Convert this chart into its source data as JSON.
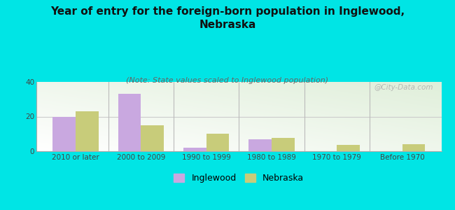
{
  "title": "Year of entry for the foreign-born population in Inglewood,\nNebraska",
  "subtitle": "(Note: State values scaled to Inglewood population)",
  "categories": [
    "2010 or later",
    "2000 to 2009",
    "1990 to 1999",
    "1980 to 1989",
    "1970 to 1979",
    "Before 1970"
  ],
  "inglewood_values": [
    20,
    33,
    2,
    7,
    0,
    0
  ],
  "nebraska_values": [
    23,
    15,
    10,
    7.5,
    3.5,
    4
  ],
  "inglewood_color": "#c9a8e0",
  "nebraska_color": "#c8cc7a",
  "background_color": "#00e5e5",
  "ylim": [
    0,
    40
  ],
  "yticks": [
    0,
    20,
    40
  ],
  "bar_width": 0.35,
  "title_fontsize": 11,
  "subtitle_fontsize": 8,
  "tick_fontsize": 7.5,
  "legend_fontsize": 9,
  "watermark": "@City-Data.com"
}
